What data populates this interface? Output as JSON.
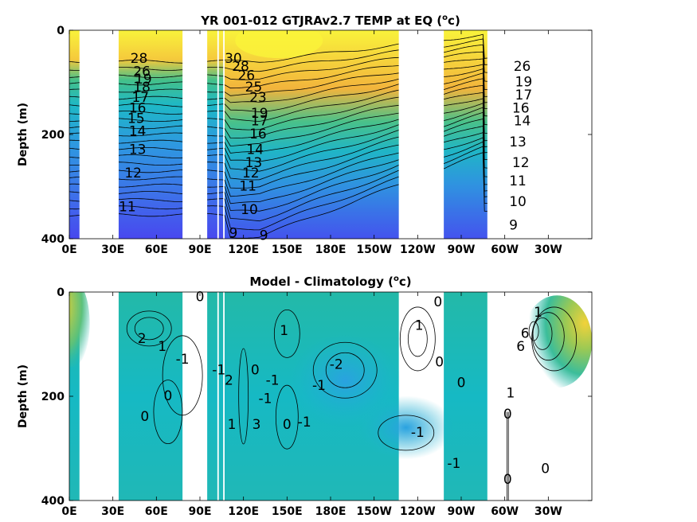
{
  "chart_data": [
    {
      "type": "heatmap",
      "title": "YR 001-012 GTJRAv2.7 TEMP at EQ (",
      "title_sup": "o",
      "title_end": "c)",
      "ylabel": "Depth (m)",
      "xlabel": "",
      "x_ticks": [
        "0E",
        "30E",
        "60E",
        "90E",
        "120E",
        "150E",
        "180E",
        "150W",
        "120W",
        "90W",
        "60W",
        "30W"
      ],
      "x_tick_values": [
        0,
        30,
        60,
        90,
        120,
        150,
        180,
        210,
        240,
        270,
        300,
        330
      ],
      "xlim": [
        0,
        360
      ],
      "y_ticks": [
        "0",
        "200",
        "400"
      ],
      "y_tick_values": [
        0,
        200,
        400
      ],
      "ylim": [
        0,
        400
      ],
      "grid": false,
      "ocean_segments": [
        [
          0,
          7
        ],
        [
          34,
          78
        ],
        [
          95,
          102
        ],
        [
          103,
          106
        ],
        [
          107,
          227
        ],
        [
          258,
          288
        ]
      ],
      "colors": {
        "warm": "#f9f33b",
        "orange": "#f2b43c",
        "teal": "#2bb59a",
        "cyan": "#1fb8c8",
        "blue": "#3d7ce8",
        "deep": "#4a4bef"
      },
      "contour_labels": [
        {
          "text": "28",
          "x": 48,
          "depth": 55
        },
        {
          "text": "26",
          "x": 50,
          "depth": 80
        },
        {
          "text": "19",
          "x": 51,
          "depth": 95
        },
        {
          "text": "18",
          "x": 50,
          "depth": 110
        },
        {
          "text": "17",
          "x": 49,
          "depth": 130
        },
        {
          "text": "16",
          "x": 47,
          "depth": 150
        },
        {
          "text": "15",
          "x": 46,
          "depth": 170
        },
        {
          "text": "14",
          "x": 47,
          "depth": 195
        },
        {
          "text": "13",
          "x": 47,
          "depth": 230
        },
        {
          "text": "12",
          "x": 44,
          "depth": 275
        },
        {
          "text": "11",
          "x": 40,
          "depth": 340
        },
        {
          "text": "30",
          "x": 113,
          "depth": 55
        },
        {
          "text": "28",
          "x": 118,
          "depth": 70
        },
        {
          "text": "26",
          "x": 122,
          "depth": 88
        },
        {
          "text": "25",
          "x": 127,
          "depth": 110
        },
        {
          "text": "23",
          "x": 130,
          "depth": 130
        },
        {
          "text": "19",
          "x": 131,
          "depth": 160
        },
        {
          "text": "17",
          "x": 131,
          "depth": 175
        },
        {
          "text": "16",
          "x": 130,
          "depth": 200
        },
        {
          "text": "14",
          "x": 128,
          "depth": 230
        },
        {
          "text": "13",
          "x": 127,
          "depth": 255
        },
        {
          "text": "12",
          "x": 125,
          "depth": 275
        },
        {
          "text": "11",
          "x": 123,
          "depth": 300
        },
        {
          "text": "10",
          "x": 124,
          "depth": 345
        },
        {
          "text": "9",
          "x": 113,
          "depth": 390
        },
        {
          "text": "9",
          "x": 134,
          "depth": 395
        },
        {
          "text": "26",
          "x": 312,
          "depth": 70
        },
        {
          "text": "19",
          "x": 313,
          "depth": 100
        },
        {
          "text": "17",
          "x": 313,
          "depth": 125
        },
        {
          "text": "16",
          "x": 311,
          "depth": 150
        },
        {
          "text": "14",
          "x": 312,
          "depth": 175
        },
        {
          "text": "13",
          "x": 309,
          "depth": 215
        },
        {
          "text": "12",
          "x": 311,
          "depth": 255
        },
        {
          "text": "11",
          "x": 309,
          "depth": 290
        },
        {
          "text": "10",
          "x": 309,
          "depth": 330
        },
        {
          "text": "9",
          "x": 306,
          "depth": 375
        }
      ]
    },
    {
      "type": "heatmap",
      "title": "Model - Climatology (",
      "title_sup": "o",
      "title_end": "c)",
      "ylabel": "Depth (m)",
      "xlabel": "",
      "x_ticks": [
        "0E",
        "30E",
        "60E",
        "90E",
        "120E",
        "150E",
        "180E",
        "150W",
        "120W",
        "90W",
        "60W",
        "30W"
      ],
      "x_tick_values": [
        0,
        30,
        60,
        90,
        120,
        150,
        180,
        210,
        240,
        270,
        300,
        330
      ],
      "xlim": [
        0,
        360
      ],
      "y_ticks": [
        "0",
        "200",
        "400"
      ],
      "y_tick_values": [
        0,
        200,
        400
      ],
      "ylim": [
        0,
        400
      ],
      "grid": false,
      "contour_labels": [
        {
          "text": "0",
          "x": 90,
          "depth": 10
        },
        {
          "text": "2",
          "x": 50,
          "depth": 90
        },
        {
          "text": "1",
          "x": 64,
          "depth": 105
        },
        {
          "text": "-1",
          "x": 78,
          "depth": 130
        },
        {
          "text": "0",
          "x": 68,
          "depth": 200
        },
        {
          "text": "0",
          "x": 52,
          "depth": 240
        },
        {
          "text": "1",
          "x": 148,
          "depth": 75
        },
        {
          "text": "-1",
          "x": 103,
          "depth": 150
        },
        {
          "text": "2",
          "x": 110,
          "depth": 170
        },
        {
          "text": "0",
          "x": 128,
          "depth": 150
        },
        {
          "text": "-1",
          "x": 140,
          "depth": 170
        },
        {
          "text": "-2",
          "x": 184,
          "depth": 140
        },
        {
          "text": "-1",
          "x": 172,
          "depth": 180
        },
        {
          "text": "-1",
          "x": 135,
          "depth": 205
        },
        {
          "text": "0",
          "x": 150,
          "depth": 255
        },
        {
          "text": "-1",
          "x": 162,
          "depth": 250
        },
        {
          "text": "1",
          "x": 112,
          "depth": 255
        },
        {
          "text": "3",
          "x": 129,
          "depth": 255
        },
        {
          "text": "-1",
          "x": 240,
          "depth": 270
        },
        {
          "text": "1",
          "x": 241,
          "depth": 65
        },
        {
          "text": "0",
          "x": 254,
          "depth": 20
        },
        {
          "text": "0",
          "x": 270,
          "depth": 175
        },
        {
          "text": "-1",
          "x": 265,
          "depth": 330
        },
        {
          "text": "0",
          "x": 255,
          "depth": 135
        },
        {
          "text": "1",
          "x": 323,
          "depth": 40
        },
        {
          "text": "6",
          "x": 314,
          "depth": 80
        },
        {
          "text": "6",
          "x": 311,
          "depth": 105
        },
        {
          "text": "1",
          "x": 304,
          "depth": 195
        },
        {
          "text": "0",
          "x": 302,
          "depth": 235
        },
        {
          "text": "0",
          "x": 302,
          "depth": 360
        },
        {
          "text": "0",
          "x": 328,
          "depth": 340
        }
      ]
    }
  ]
}
